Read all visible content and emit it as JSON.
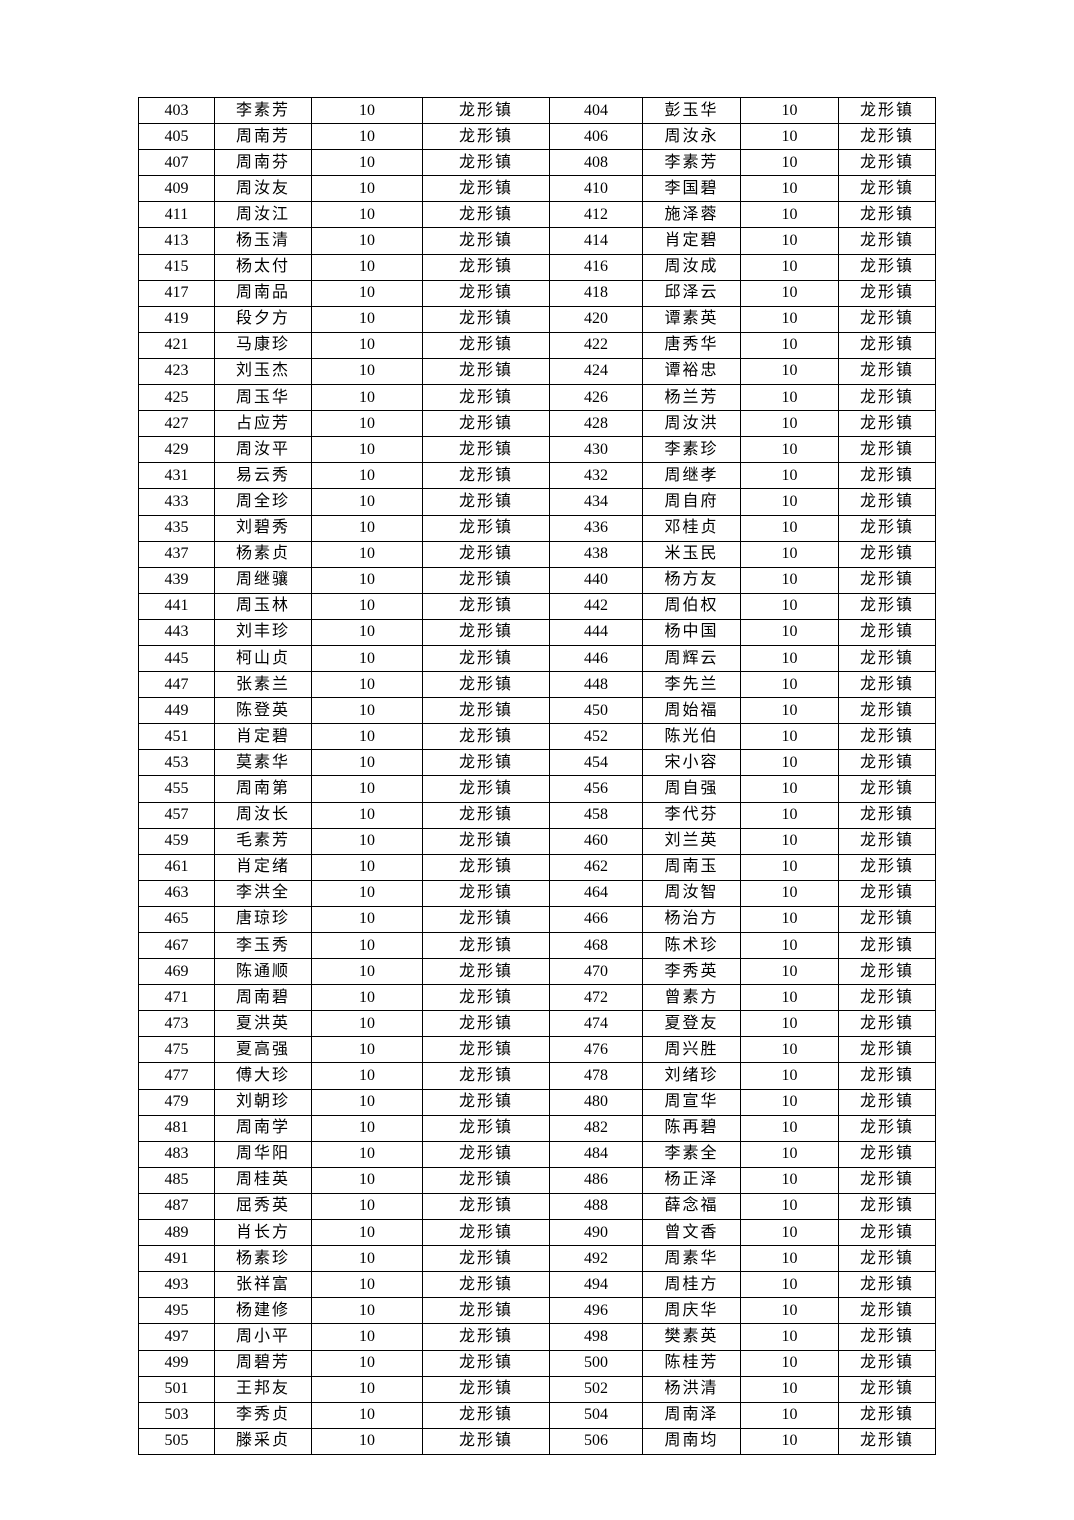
{
  "table": {
    "rows": [
      [
        "403",
        "李素芳",
        "10",
        "龙形镇",
        "404",
        "彭玉华",
        "10",
        "龙形镇"
      ],
      [
        "405",
        "周南芳",
        "10",
        "龙形镇",
        "406",
        "周汝永",
        "10",
        "龙形镇"
      ],
      [
        "407",
        "周南芬",
        "10",
        "龙形镇",
        "408",
        "李素芳",
        "10",
        "龙形镇"
      ],
      [
        "409",
        "周汝友",
        "10",
        "龙形镇",
        "410",
        "李国碧",
        "10",
        "龙形镇"
      ],
      [
        "411",
        "周汝江",
        "10",
        "龙形镇",
        "412",
        "施泽蓉",
        "10",
        "龙形镇"
      ],
      [
        "413",
        "杨玉清",
        "10",
        "龙形镇",
        "414",
        "肖定碧",
        "10",
        "龙形镇"
      ],
      [
        "415",
        "杨太付",
        "10",
        "龙形镇",
        "416",
        "周汝成",
        "10",
        "龙形镇"
      ],
      [
        "417",
        "周南品",
        "10",
        "龙形镇",
        "418",
        "邱泽云",
        "10",
        "龙形镇"
      ],
      [
        "419",
        "段夕方",
        "10",
        "龙形镇",
        "420",
        "谭素英",
        "10",
        "龙形镇"
      ],
      [
        "421",
        "马康珍",
        "10",
        "龙形镇",
        "422",
        "唐秀华",
        "10",
        "龙形镇"
      ],
      [
        "423",
        "刘玉杰",
        "10",
        "龙形镇",
        "424",
        "谭裕忠",
        "10",
        "龙形镇"
      ],
      [
        "425",
        "周玉华",
        "10",
        "龙形镇",
        "426",
        "杨兰芳",
        "10",
        "龙形镇"
      ],
      [
        "427",
        "占应芳",
        "10",
        "龙形镇",
        "428",
        "周汝洪",
        "10",
        "龙形镇"
      ],
      [
        "429",
        "周汝平",
        "10",
        "龙形镇",
        "430",
        "李素珍",
        "10",
        "龙形镇"
      ],
      [
        "431",
        "易云秀",
        "10",
        "龙形镇",
        "432",
        "周继孝",
        "10",
        "龙形镇"
      ],
      [
        "433",
        "周全珍",
        "10",
        "龙形镇",
        "434",
        "周自府",
        "10",
        "龙形镇"
      ],
      [
        "435",
        "刘碧秀",
        "10",
        "龙形镇",
        "436",
        "邓桂贞",
        "10",
        "龙形镇"
      ],
      [
        "437",
        "杨素贞",
        "10",
        "龙形镇",
        "438",
        "米玉民",
        "10",
        "龙形镇"
      ],
      [
        "439",
        "周继骧",
        "10",
        "龙形镇",
        "440",
        "杨方友",
        "10",
        "龙形镇"
      ],
      [
        "441",
        "周玉林",
        "10",
        "龙形镇",
        "442",
        "周伯权",
        "10",
        "龙形镇"
      ],
      [
        "443",
        "刘丰珍",
        "10",
        "龙形镇",
        "444",
        "杨中国",
        "10",
        "龙形镇"
      ],
      [
        "445",
        "柯山贞",
        "10",
        "龙形镇",
        "446",
        "周辉云",
        "10",
        "龙形镇"
      ],
      [
        "447",
        "张素兰",
        "10",
        "龙形镇",
        "448",
        "李先兰",
        "10",
        "龙形镇"
      ],
      [
        "449",
        "陈登英",
        "10",
        "龙形镇",
        "450",
        "周始福",
        "10",
        "龙形镇"
      ],
      [
        "451",
        "肖定碧",
        "10",
        "龙形镇",
        "452",
        "陈光伯",
        "10",
        "龙形镇"
      ],
      [
        "453",
        "莫素华",
        "10",
        "龙形镇",
        "454",
        "宋小容",
        "10",
        "龙形镇"
      ],
      [
        "455",
        "周南第",
        "10",
        "龙形镇",
        "456",
        "周自强",
        "10",
        "龙形镇"
      ],
      [
        "457",
        "周汝长",
        "10",
        "龙形镇",
        "458",
        "李代芬",
        "10",
        "龙形镇"
      ],
      [
        "459",
        "毛素芳",
        "10",
        "龙形镇",
        "460",
        "刘兰英",
        "10",
        "龙形镇"
      ],
      [
        "461",
        "肖定绪",
        "10",
        "龙形镇",
        "462",
        "周南玉",
        "10",
        "龙形镇"
      ],
      [
        "463",
        "李洪全",
        "10",
        "龙形镇",
        "464",
        "周汝智",
        "10",
        "龙形镇"
      ],
      [
        "465",
        "唐琼珍",
        "10",
        "龙形镇",
        "466",
        "杨治方",
        "10",
        "龙形镇"
      ],
      [
        "467",
        "李玉秀",
        "10",
        "龙形镇",
        "468",
        "陈术珍",
        "10",
        "龙形镇"
      ],
      [
        "469",
        "陈通顺",
        "10",
        "龙形镇",
        "470",
        "李秀英",
        "10",
        "龙形镇"
      ],
      [
        "471",
        "周南碧",
        "10",
        "龙形镇",
        "472",
        "曾素方",
        "10",
        "龙形镇"
      ],
      [
        "473",
        "夏洪英",
        "10",
        "龙形镇",
        "474",
        "夏登友",
        "10",
        "龙形镇"
      ],
      [
        "475",
        "夏高强",
        "10",
        "龙形镇",
        "476",
        "周兴胜",
        "10",
        "龙形镇"
      ],
      [
        "477",
        "傅大珍",
        "10",
        "龙形镇",
        "478",
        "刘绪珍",
        "10",
        "龙形镇"
      ],
      [
        "479",
        "刘朝珍",
        "10",
        "龙形镇",
        "480",
        "周宣华",
        "10",
        "龙形镇"
      ],
      [
        "481",
        "周南学",
        "10",
        "龙形镇",
        "482",
        "陈再碧",
        "10",
        "龙形镇"
      ],
      [
        "483",
        "周华阳",
        "10",
        "龙形镇",
        "484",
        "李素全",
        "10",
        "龙形镇"
      ],
      [
        "485",
        "周桂英",
        "10",
        "龙形镇",
        "486",
        "杨正泽",
        "10",
        "龙形镇"
      ],
      [
        "487",
        "屈秀英",
        "10",
        "龙形镇",
        "488",
        "薛念福",
        "10",
        "龙形镇"
      ],
      [
        "489",
        "肖长方",
        "10",
        "龙形镇",
        "490",
        "曾文香",
        "10",
        "龙形镇"
      ],
      [
        "491",
        "杨素珍",
        "10",
        "龙形镇",
        "492",
        "周素华",
        "10",
        "龙形镇"
      ],
      [
        "493",
        "张祥富",
        "10",
        "龙形镇",
        "494",
        "周桂方",
        "10",
        "龙形镇"
      ],
      [
        "495",
        "杨建修",
        "10",
        "龙形镇",
        "496",
        "周庆华",
        "10",
        "龙形镇"
      ],
      [
        "497",
        "周小平",
        "10",
        "龙形镇",
        "498",
        "樊素英",
        "10",
        "龙形镇"
      ],
      [
        "499",
        "周碧芳",
        "10",
        "龙形镇",
        "500",
        "陈桂芳",
        "10",
        "龙形镇"
      ],
      [
        "501",
        "王邦友",
        "10",
        "龙形镇",
        "502",
        "杨洪清",
        "10",
        "龙形镇"
      ],
      [
        "503",
        "李秀贞",
        "10",
        "龙形镇",
        "504",
        "周南泽",
        "10",
        "龙形镇"
      ],
      [
        "505",
        "滕采贞",
        "10",
        "龙形镇",
        "506",
        "周南均",
        "10",
        "龙形镇"
      ]
    ]
  }
}
